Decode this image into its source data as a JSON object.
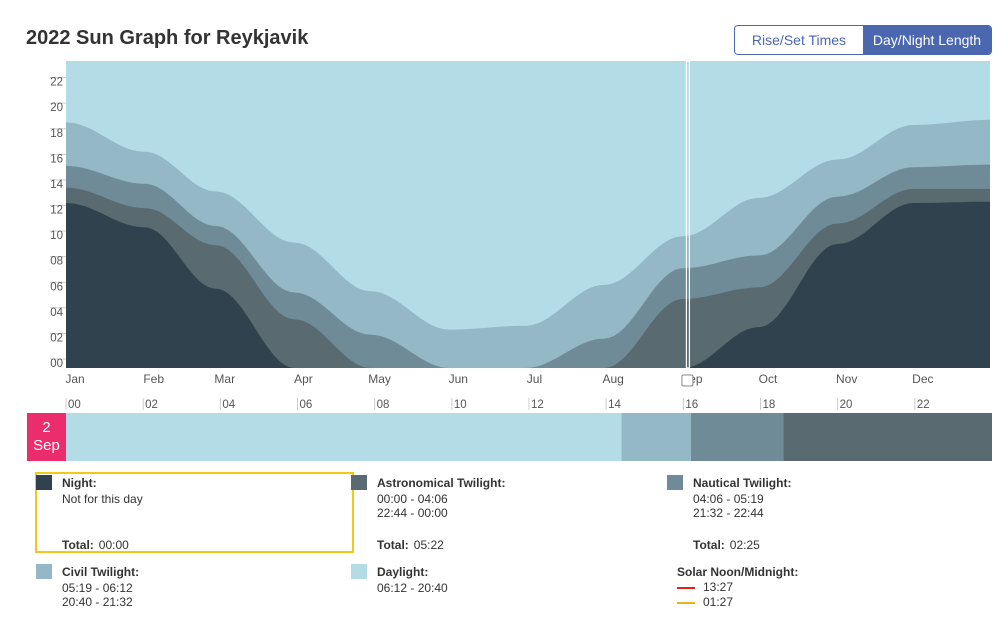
{
  "title": "2022 Sun Graph for Reykjavik",
  "toggle": {
    "rise_set_label": "Rise/Set Times",
    "day_night_label": "Day/Night Length"
  },
  "colors": {
    "night": "#2f424d",
    "astronomical": "#5a6a71",
    "nautical": "#6f8b97",
    "civil": "#94b8c5",
    "daylight": "#b3dce6",
    "badge": "#ec2d6d",
    "selected": "#f2c91b",
    "solar_noon": "#e0241c",
    "solar_midnight": "#e8b21a"
  },
  "chart_data": {
    "type": "area",
    "title": "2022 Sun Graph for Reykjavik",
    "x_labels": [
      "Jan",
      "Feb",
      "Mar",
      "Apr",
      "May",
      "Jun",
      "Jul",
      "Aug",
      "Sep",
      "Oct",
      "Nov",
      "Dec"
    ],
    "y_ticks": [
      "00",
      "02",
      "04",
      "06",
      "08",
      "10",
      "12",
      "14",
      "16",
      "18",
      "20",
      "22"
    ],
    "ylim": [
      0,
      24
    ],
    "unit": "hours",
    "days": [
      0,
      31,
      59,
      90,
      120,
      151,
      181,
      212,
      243,
      273,
      304,
      334,
      364
    ],
    "series": [
      {
        "name": "Night",
        "values": [
          12.9,
          11.0,
          6.2,
          0,
          0,
          0,
          0,
          0,
          0,
          3.2,
          9.7,
          12.9,
          13.0
        ]
      },
      {
        "name": "Astronomical Twilight",
        "values": [
          14.1,
          12.5,
          9.6,
          3.8,
          0,
          0,
          0,
          0,
          5.4,
          6.3,
          11.3,
          14.0,
          14.0
        ]
      },
      {
        "name": "Nautical Twilight",
        "values": [
          15.8,
          14.4,
          11.1,
          5.9,
          2.6,
          0,
          0,
          2.3,
          7.8,
          8.8,
          13.4,
          15.7,
          15.9
        ]
      },
      {
        "name": "Civil Twilight",
        "values": [
          19.2,
          16.9,
          13.8,
          9.8,
          6.0,
          3.0,
          3.3,
          6.5,
          10.3,
          13.3,
          16.3,
          19.0,
          19.4
        ]
      }
    ],
    "selected_day": 245,
    "hour_axis": [
      "00",
      "02",
      "04",
      "06",
      "08",
      "10",
      "12",
      "14",
      "16",
      "18",
      "20",
      "22"
    ]
  },
  "selected_date": {
    "day": "2",
    "month": "Sep"
  },
  "day_timeline": [
    {
      "class": "daylight",
      "start": 0,
      "end": 14.4
    },
    {
      "class": "civil",
      "start": 14.4,
      "end": 16.2
    },
    {
      "class": "nautical",
      "start": 16.2,
      "end": 18.6
    },
    {
      "class": "astronomical",
      "start": 18.6,
      "end": 24
    }
  ],
  "legend": {
    "night": {
      "label": "Night:",
      "line1": "Not for this day",
      "total_label": "Total:",
      "total": "00:00"
    },
    "astronomical": {
      "label": "Astronomical Twilight:",
      "line1": "00:00 - 04:06",
      "line2": "22:44 - 00:00",
      "total_label": "Total:",
      "total": "05:22"
    },
    "nautical": {
      "label": "Nautical Twilight:",
      "line1": "04:06 - 05:19",
      "line2": "21:32 - 22:44",
      "total_label": "Total:",
      "total": "02:25"
    },
    "civil": {
      "label": "Civil Twilight:",
      "line1": "05:19 - 06:12",
      "line2": "20:40 - 21:32"
    },
    "daylight": {
      "label": "Daylight:",
      "line1": "06:12 - 20:40"
    },
    "solar": {
      "label": "Solar Noon/Midnight:",
      "noon": "13:27",
      "midnight": "01:27"
    }
  }
}
